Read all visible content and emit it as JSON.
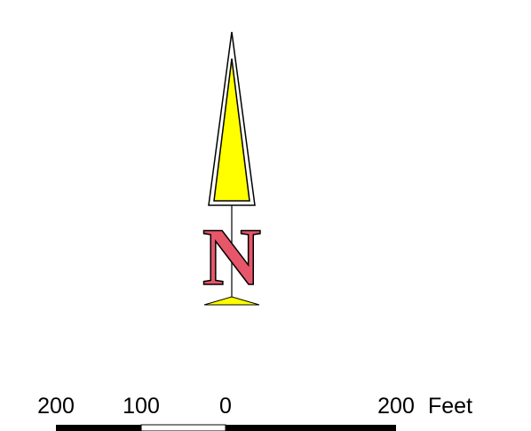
{
  "north_arrow": {
    "letter": "N",
    "arrow_fill": "#ffff00",
    "arrow_outline": "#000000",
    "letter_fill": "#e8566a",
    "letter_outline": "#000000"
  },
  "scale_bar": {
    "ticks": [
      {
        "label": "200",
        "value": -200
      },
      {
        "label": "100",
        "value": -100
      },
      {
        "label": "0",
        "value": 0
      },
      {
        "label": "200",
        "value": 200
      }
    ],
    "unit": "Feet",
    "segments": [
      {
        "from": -200,
        "to": -100,
        "fill": "#000000"
      },
      {
        "from": -100,
        "to": 0,
        "fill": "#ffffff"
      },
      {
        "from": 0,
        "to": 200,
        "fill": "#000000"
      }
    ]
  }
}
